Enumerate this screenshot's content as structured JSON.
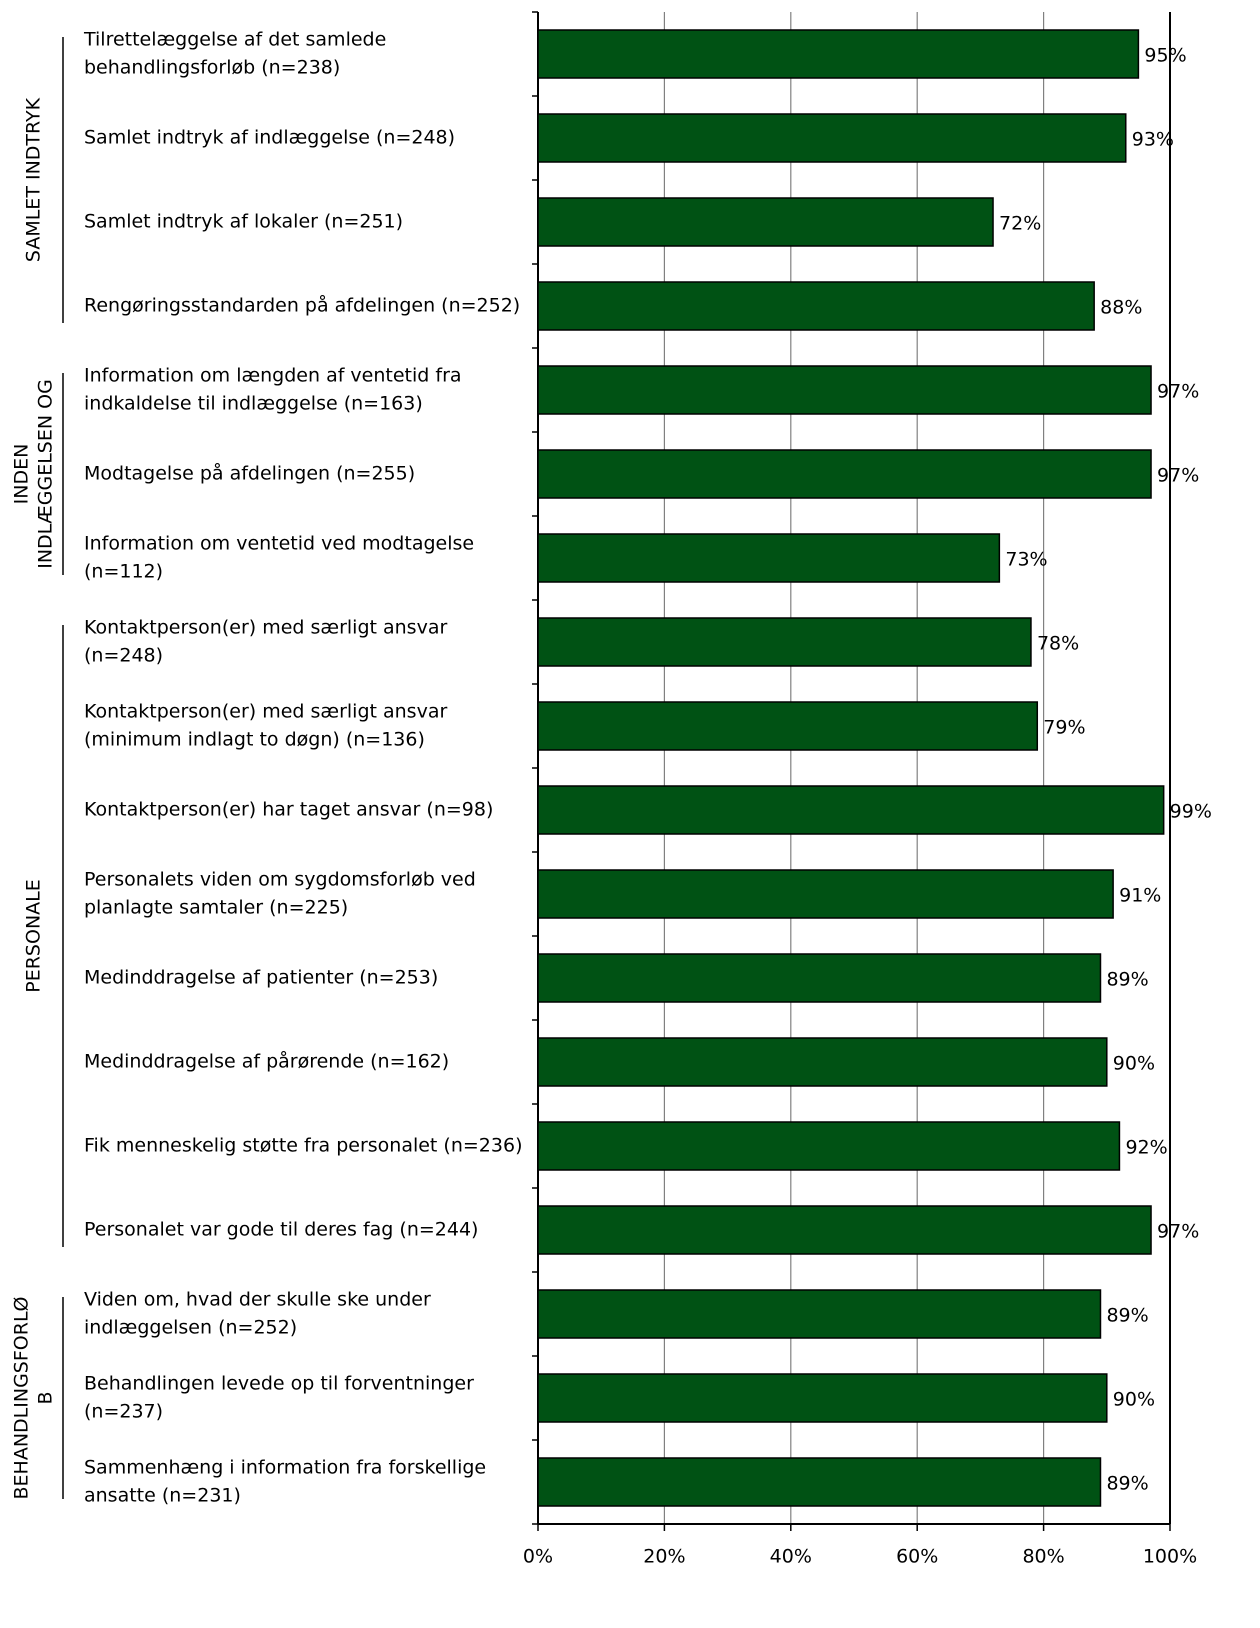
{
  "chart_data": {
    "type": "bar",
    "orientation": "horizontal",
    "categories": [
      [
        "Tilrettelæggelse af det samlede",
        "behandlingsforløb (n=238)"
      ],
      [
        "Samlet indtryk af indlæggelse (n=248)"
      ],
      [
        "Samlet indtryk af lokaler (n=251)"
      ],
      [
        "Rengøringsstandarden på afdelingen (n=252)"
      ],
      [
        "Information om længden af ventetid fra",
        "indkaldelse til indlæggelse (n=163)"
      ],
      [
        "Modtagelse på afdelingen (n=255)"
      ],
      [
        "Information om ventetid ved modtagelse",
        "(n=112)"
      ],
      [
        "Kontaktperson(er) med særligt ansvar",
        "(n=248)"
      ],
      [
        "Kontaktperson(er) med særligt ansvar",
        "(minimum indlagt to døgn) (n=136)"
      ],
      [
        "Kontaktperson(er) har taget ansvar (n=98)"
      ],
      [
        "Personalets viden om sygdomsforløb ved",
        "planlagte samtaler (n=225)"
      ],
      [
        "Medinddragelse af patienter (n=253)"
      ],
      [
        "Medinddragelse af pårørende (n=162)"
      ],
      [
        "Fik menneskelig støtte fra personalet (n=236)"
      ],
      [
        "Personalet var gode til deres fag (n=244)"
      ],
      [
        "Viden om, hvad der skulle ske under",
        "indlæggelsen (n=252)"
      ],
      [
        "Behandlingen levede op til forventninger",
        "(n=237)"
      ],
      [
        "Sammenhæng i information fra forskellige",
        "ansatte (n=231)"
      ]
    ],
    "values": [
      95,
      93,
      72,
      88,
      97,
      97,
      73,
      78,
      79,
      99,
      91,
      89,
      90,
      92,
      97,
      89,
      90,
      89
    ],
    "value_labels": [
      "95%",
      "93%",
      "72%",
      "88%",
      "97%",
      "97%",
      "73%",
      "78%",
      "79%",
      "99%",
      "91%",
      "89%",
      "90%",
      "92%",
      "97%",
      "89%",
      "90%",
      "89%"
    ],
    "groups": [
      {
        "label": [
          "SAMLET INDTRYK"
        ],
        "size": 4
      },
      {
        "label": [
          "INDEN",
          "INDLÆGGELSEN OG"
        ],
        "size": 3
      },
      {
        "label": [
          "PERSONALE"
        ],
        "size": 8
      },
      {
        "label": [
          "BEHANDLINGSFORLØ",
          "B"
        ],
        "size": 3
      }
    ],
    "color": "#005214",
    "xlim": [
      0,
      100
    ],
    "xticks": [
      {
        "value": 0,
        "label": "0%"
      },
      {
        "value": 20,
        "label": "20%"
      },
      {
        "value": 40,
        "label": "40%"
      },
      {
        "value": 60,
        "label": "60%"
      },
      {
        "value": 80,
        "label": "80%"
      },
      {
        "value": 100,
        "label": "100%"
      }
    ],
    "grid": true
  }
}
